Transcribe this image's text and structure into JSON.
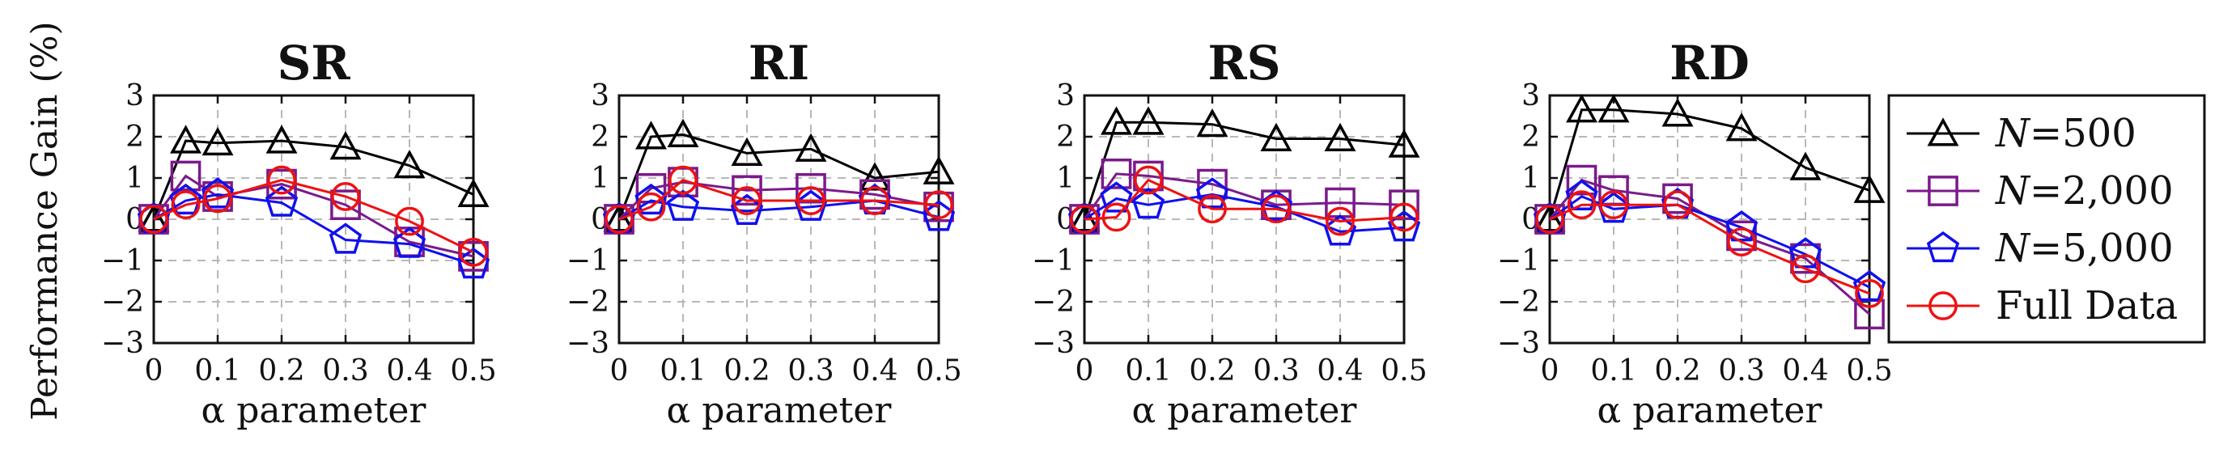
{
  "ylabel": "Performance Gain (%)",
  "colors": {
    "n500": "#000000",
    "n2000": "#7b1a8b",
    "n5000": "#1010ee",
    "full": "#ee1111",
    "grid": "#b8b8b8"
  },
  "legend": [
    {
      "key": "n500",
      "var": "N",
      "value": "=500",
      "marker": "triangle"
    },
    {
      "key": "n2000",
      "var": "N",
      "value": "=2,000",
      "marker": "square"
    },
    {
      "key": "n5000",
      "var": "N",
      "value": "=5,000",
      "marker": "pentagon"
    },
    {
      "key": "full",
      "label": "Full Data",
      "marker": "circle"
    }
  ],
  "chart_data": [
    {
      "type": "line",
      "title": "SR",
      "xlabel": "α parameter",
      "x": [
        0,
        0.05,
        0.1,
        0.2,
        0.3,
        0.4,
        0.5
      ],
      "xticks": [
        "0",
        "0.1",
        "0.2",
        "0.3",
        "0.4",
        "0.5"
      ],
      "yticks": [
        "3",
        "2",
        "1",
        "0",
        "−1",
        "−2",
        "−3"
      ],
      "xlim": [
        0,
        0.5
      ],
      "ylim": [
        -3,
        3
      ],
      "grid": true,
      "series": [
        {
          "key": "n500",
          "name": "N=500",
          "values": [
            0,
            1.9,
            1.85,
            1.9,
            1.75,
            1.3,
            0.6
          ]
        },
        {
          "key": "n2000",
          "name": "N=2,000",
          "values": [
            0,
            1.05,
            0.55,
            0.85,
            0.35,
            -0.55,
            -0.9
          ]
        },
        {
          "key": "n5000",
          "name": "N=5,000",
          "values": [
            0,
            0.45,
            0.6,
            0.4,
            -0.5,
            -0.6,
            -1.1
          ]
        },
        {
          "key": "full",
          "name": "Full Data",
          "values": [
            0,
            0.35,
            0.5,
            0.95,
            0.55,
            -0.05,
            -0.8
          ]
        }
      ]
    },
    {
      "type": "line",
      "title": "RI",
      "xlabel": "α parameter",
      "x": [
        0,
        0.05,
        0.1,
        0.2,
        0.3,
        0.4,
        0.5
      ],
      "xticks": [
        "0",
        "0.1",
        "0.2",
        "0.3",
        "0.4",
        "0.5"
      ],
      "yticks": [
        "3",
        "2",
        "1",
        "0",
        "−1",
        "−2",
        "−3"
      ],
      "xlim": [
        0,
        0.5
      ],
      "ylim": [
        -3,
        3
      ],
      "grid": true,
      "series": [
        {
          "key": "n500",
          "name": "N=500",
          "values": [
            0,
            2.0,
            2.05,
            1.6,
            1.7,
            1.0,
            1.15
          ]
        },
        {
          "key": "n2000",
          "name": "N=2,000",
          "values": [
            0,
            0.75,
            0.9,
            0.7,
            0.75,
            0.6,
            0.3
          ]
        },
        {
          "key": "n5000",
          "name": "N=5,000",
          "values": [
            0,
            0.45,
            0.3,
            0.2,
            0.3,
            0.45,
            0.05
          ]
        },
        {
          "key": "full",
          "name": "Full Data",
          "values": [
            0,
            0.3,
            0.95,
            0.45,
            0.45,
            0.45,
            0.35
          ]
        }
      ]
    },
    {
      "type": "line",
      "title": "RS",
      "xlabel": "α parameter",
      "x": [
        0,
        0.05,
        0.1,
        0.2,
        0.3,
        0.4,
        0.5
      ],
      "xticks": [
        "0",
        "0.1",
        "0.2",
        "0.3",
        "0.4",
        "0.5"
      ],
      "yticks": [
        "3",
        "2",
        "1",
        "0",
        "−1",
        "−2",
        "−3"
      ],
      "xlim": [
        0,
        0.5
      ],
      "ylim": [
        -3,
        3
      ],
      "grid": true,
      "series": [
        {
          "key": "n500",
          "name": "N=500",
          "values": [
            0,
            2.35,
            2.35,
            2.3,
            1.95,
            1.95,
            1.8
          ]
        },
        {
          "key": "n2000",
          "name": "N=2,000",
          "values": [
            0,
            1.1,
            1.05,
            0.85,
            0.35,
            0.4,
            0.35
          ]
        },
        {
          "key": "n5000",
          "name": "N=5,000",
          "values": [
            0,
            0.5,
            0.35,
            0.6,
            0.3,
            -0.3,
            -0.2
          ]
        },
        {
          "key": "full",
          "name": "Full Data",
          "values": [
            0,
            0.05,
            0.95,
            0.25,
            0.25,
            -0.05,
            0.05
          ]
        }
      ]
    },
    {
      "type": "line",
      "title": "RD",
      "xlabel": "α parameter",
      "x": [
        0,
        0.05,
        0.1,
        0.2,
        0.3,
        0.4,
        0.5
      ],
      "xticks": [
        "0",
        "0.1",
        "0.2",
        "0.3",
        "0.4",
        "0.5"
      ],
      "yticks": [
        "3",
        "2",
        "1",
        "0",
        "−1",
        "−2",
        "−3"
      ],
      "xlim": [
        0,
        0.5
      ],
      "ylim": [
        -3,
        3
      ],
      "grid": true,
      "series": [
        {
          "key": "n500",
          "name": "N=500",
          "values": [
            0,
            2.65,
            2.65,
            2.55,
            2.2,
            1.25,
            0.7
          ]
        },
        {
          "key": "n2000",
          "name": "N=2,000",
          "values": [
            0,
            0.95,
            0.7,
            0.5,
            -0.4,
            -0.95,
            -2.3
          ]
        },
        {
          "key": "n5000",
          "name": "N=5,000",
          "values": [
            0,
            0.55,
            0.25,
            0.35,
            -0.2,
            -0.85,
            -1.65
          ]
        },
        {
          "key": "full",
          "name": "Full Data",
          "values": [
            0,
            0.35,
            0.35,
            0.35,
            -0.55,
            -1.2,
            -1.8
          ]
        }
      ]
    }
  ]
}
